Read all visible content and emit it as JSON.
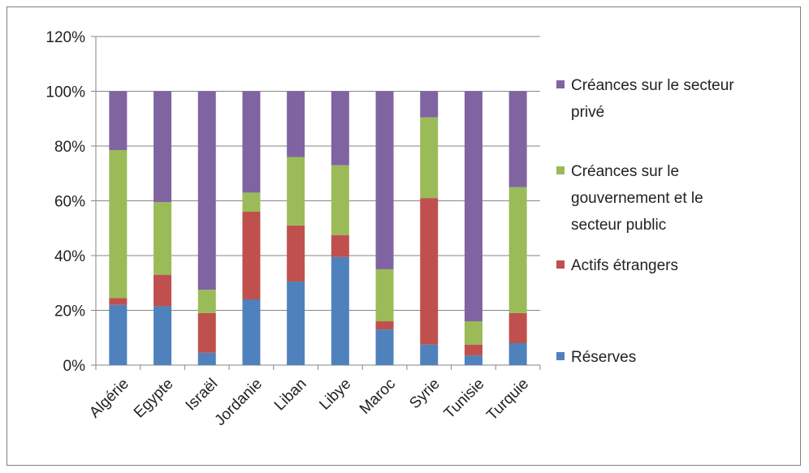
{
  "chart_data": {
    "type": "bar",
    "stacked": true,
    "normalized_100pct": true,
    "categories": [
      "Algérie",
      "Egypte",
      "Israël",
      "Jordanie",
      "Liban",
      "Libye",
      "Maroc",
      "Syrie",
      "Tunisie",
      "Turquie"
    ],
    "series": [
      {
        "name": "Réserves",
        "color": "#4f81bd",
        "values": [
          22,
          21.5,
          4.5,
          24,
          30.5,
          39.5,
          13,
          7.5,
          3.5,
          8
        ]
      },
      {
        "name": "Actifs étrangers",
        "color": "#c0504d",
        "values": [
          2.5,
          11.5,
          14.5,
          32,
          20.5,
          8,
          3,
          53.5,
          4,
          11
        ]
      },
      {
        "name": "Créances sur le gouvernement et le secteur public",
        "color": "#9bbb59",
        "values": [
          54,
          26.5,
          8.5,
          7,
          25,
          25.5,
          19,
          29.5,
          8.5,
          46
        ]
      },
      {
        "name": "Créances sur le secteur privé",
        "color": "#8064a2",
        "values": [
          21.5,
          40.5,
          72.5,
          37,
          24,
          27,
          65,
          9.5,
          84,
          35
        ]
      }
    ],
    "ylim": [
      0,
      120
    ],
    "yticks": [
      "0%",
      "20%",
      "40%",
      "60%",
      "80%",
      "100%",
      "120%"
    ],
    "grid": true,
    "legend_position": "right",
    "legend_order": [
      "Créances sur le secteur privé",
      "Créances sur le gouvernement et le secteur public",
      "Actifs étrangers",
      "Réserves"
    ],
    "legend_lines": [
      [
        "Créances sur le secteur",
        "privé"
      ],
      [
        "Créances sur le",
        "gouvernement et le",
        "secteur public"
      ],
      [
        "Actifs étrangers"
      ],
      [
        "Réserves"
      ]
    ]
  }
}
